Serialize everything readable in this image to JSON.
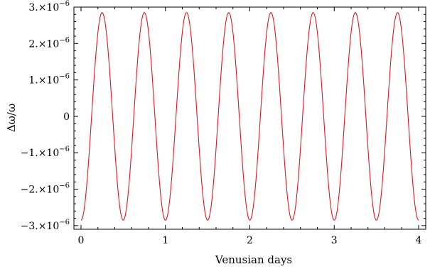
{
  "chart_data": {
    "type": "line",
    "title": "",
    "xlabel": "Venusian days",
    "ylabel": "Δω/ω",
    "xlim": [
      0,
      4
    ],
    "ylim": [
      -3.1e-06,
      3e-06
    ],
    "x_ticks": [
      {
        "value": 0,
        "label": "0"
      },
      {
        "value": 1,
        "label": "1"
      },
      {
        "value": 2,
        "label": "2"
      },
      {
        "value": 3,
        "label": "3"
      },
      {
        "value": 4,
        "label": "4"
      }
    ],
    "y_ticks": [
      {
        "value": 3e-06,
        "mantissa": "3.×10",
        "exponent": "−6"
      },
      {
        "value": 2e-06,
        "mantissa": "2.×10",
        "exponent": "−6"
      },
      {
        "value": 1e-06,
        "mantissa": "1.×10",
        "exponent": "−6"
      },
      {
        "value": 0,
        "mantissa": "0",
        "exponent": ""
      },
      {
        "value": -1e-06,
        "mantissa": "−1.×10",
        "exponent": "−6"
      },
      {
        "value": -2e-06,
        "mantissa": "−2.×10",
        "exponent": "−6"
      },
      {
        "value": -3e-06,
        "mantissa": "−3.×10",
        "exponent": "−6"
      }
    ],
    "grid": false,
    "legend": "none",
    "series": [
      {
        "color": "#e8141c",
        "function": "y = -2.85e-6 * cos(4 * pi * x)",
        "amplitude": 2.85e-06,
        "period": 0.5,
        "x": [
          0,
          0.125,
          0.25,
          0.375,
          0.5,
          0.625,
          0.75,
          0.875,
          1.0,
          1.125,
          1.25,
          1.375,
          1.5,
          1.625,
          1.75,
          1.875,
          2.0,
          2.125,
          2.25,
          2.375,
          2.5,
          2.625,
          2.75,
          2.875,
          3.0,
          3.125,
          3.25,
          3.375,
          3.5,
          3.625,
          3.75,
          3.875,
          4.0
        ],
        "y": [
          -2.85e-06,
          0,
          2.85e-06,
          0,
          -2.85e-06,
          0,
          2.85e-06,
          0,
          -2.85e-06,
          0,
          2.85e-06,
          0,
          -2.85e-06,
          0,
          2.85e-06,
          0,
          -2.85e-06,
          0,
          2.85e-06,
          0,
          -2.85e-06,
          0,
          2.85e-06,
          0,
          -2.85e-06,
          0,
          2.85e-06,
          0,
          -2.85e-06,
          0,
          2.85e-06,
          0,
          -2.85e-06
        ]
      }
    ]
  }
}
